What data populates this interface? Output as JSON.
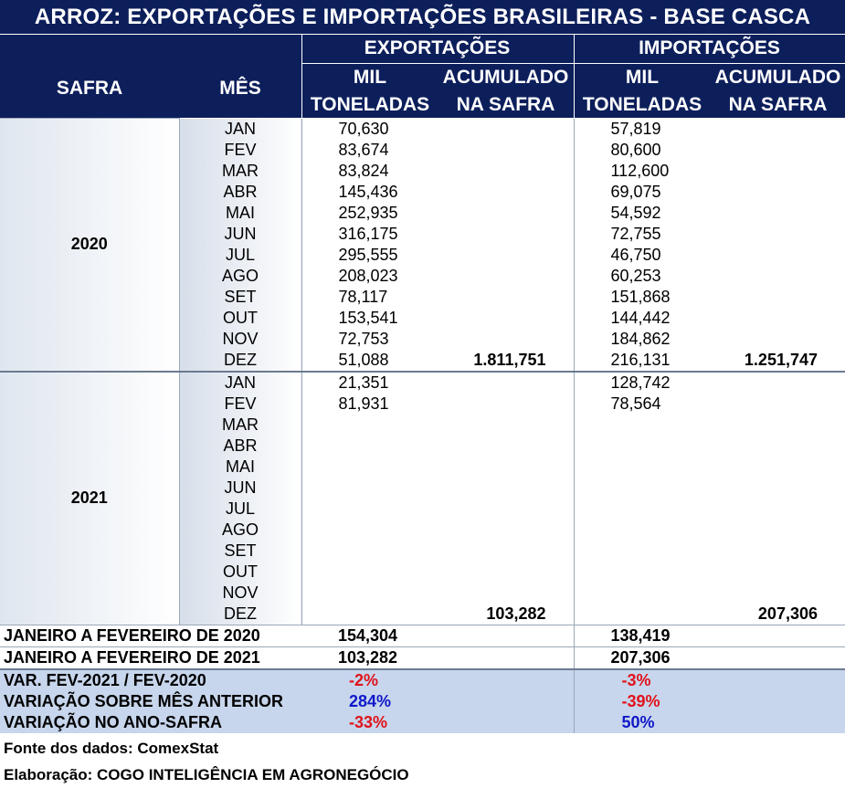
{
  "title": "ARROZ: EXPORTAÇÕES E IMPORTAÇÕES BRASILEIRAS - BASE CASCA",
  "header": {
    "safra": "SAFRA",
    "mes": "MÊS",
    "exportacoes": "EXPORTAÇÕES",
    "importacoes": "IMPORTAÇÕES",
    "mil_toneladas_1": "MIL",
    "mil_toneladas_2": "TONELADAS",
    "acumulado_1": "ACUMULADO",
    "acumulado_2": "NA SAFRA"
  },
  "safras": [
    {
      "year": "2020",
      "rows": [
        {
          "mes": "JAN",
          "exp": "70,630",
          "exp_acc": "",
          "imp": "57,819",
          "imp_acc": ""
        },
        {
          "mes": "FEV",
          "exp": "83,674",
          "exp_acc": "",
          "imp": "80,600",
          "imp_acc": ""
        },
        {
          "mes": "MAR",
          "exp": "83,824",
          "exp_acc": "",
          "imp": "112,600",
          "imp_acc": ""
        },
        {
          "mes": "ABR",
          "exp": "145,436",
          "exp_acc": "",
          "imp": "69,075",
          "imp_acc": ""
        },
        {
          "mes": "MAI",
          "exp": "252,935",
          "exp_acc": "",
          "imp": "54,592",
          "imp_acc": ""
        },
        {
          "mes": "JUN",
          "exp": "316,175",
          "exp_acc": "",
          "imp": "72,755",
          "imp_acc": ""
        },
        {
          "mes": "JUL",
          "exp": "295,555",
          "exp_acc": "",
          "imp": "46,750",
          "imp_acc": ""
        },
        {
          "mes": "AGO",
          "exp": "208,023",
          "exp_acc": "",
          "imp": "60,253",
          "imp_acc": ""
        },
        {
          "mes": "SET",
          "exp": "78,117",
          "exp_acc": "",
          "imp": "151,868",
          "imp_acc": ""
        },
        {
          "mes": "OUT",
          "exp": "153,541",
          "exp_acc": "",
          "imp": "144,442",
          "imp_acc": ""
        },
        {
          "mes": "NOV",
          "exp": "72,753",
          "exp_acc": "",
          "imp": "184,862",
          "imp_acc": ""
        },
        {
          "mes": "DEZ",
          "exp": "51,088",
          "exp_acc": "1.811,751",
          "imp": "216,131",
          "imp_acc": "1.251,747"
        }
      ]
    },
    {
      "year": "2021",
      "rows": [
        {
          "mes": "JAN",
          "exp": "21,351",
          "exp_acc": "",
          "imp": "128,742",
          "imp_acc": ""
        },
        {
          "mes": "FEV",
          "exp": "81,931",
          "exp_acc": "",
          "imp": "78,564",
          "imp_acc": ""
        },
        {
          "mes": "MAR",
          "exp": "",
          "exp_acc": "",
          "imp": "",
          "imp_acc": ""
        },
        {
          "mes": "ABR",
          "exp": "",
          "exp_acc": "",
          "imp": "",
          "imp_acc": ""
        },
        {
          "mes": "MAI",
          "exp": "",
          "exp_acc": "",
          "imp": "",
          "imp_acc": ""
        },
        {
          "mes": "JUN",
          "exp": "",
          "exp_acc": "",
          "imp": "",
          "imp_acc": ""
        },
        {
          "mes": "JUL",
          "exp": "",
          "exp_acc": "",
          "imp": "",
          "imp_acc": ""
        },
        {
          "mes": "AGO",
          "exp": "",
          "exp_acc": "",
          "imp": "",
          "imp_acc": ""
        },
        {
          "mes": "SET",
          "exp": "",
          "exp_acc": "",
          "imp": "",
          "imp_acc": ""
        },
        {
          "mes": "OUT",
          "exp": "",
          "exp_acc": "",
          "imp": "",
          "imp_acc": ""
        },
        {
          "mes": "NOV",
          "exp": "",
          "exp_acc": "",
          "imp": "",
          "imp_acc": ""
        },
        {
          "mes": "DEZ",
          "exp": "",
          "exp_acc": "103,282",
          "imp": "",
          "imp_acc": "207,306"
        }
      ]
    }
  ],
  "summary": [
    {
      "label": "JANEIRO A FEVEREIRO DE 2020",
      "exp": "154,304",
      "imp": "138,419"
    },
    {
      "label": "JANEIRO A FEVEREIRO DE 2021",
      "exp": "103,282",
      "imp": "207,306"
    }
  ],
  "variations": [
    {
      "label": "VAR. FEV-2021 / FEV-2020",
      "exp": "-2%",
      "exp_color": "#e0121b",
      "imp": "-3%",
      "imp_color": "#e0121b"
    },
    {
      "label": "VARIAÇÃO SOBRE MÊS ANTERIOR",
      "exp": "284%",
      "exp_color": "#1018c8",
      "imp": "-39%",
      "imp_color": "#e0121b"
    },
    {
      "label": "VARIAÇÃO NO ANO-SAFRA",
      "exp": "-33%",
      "exp_color": "#e0121b",
      "imp": "50%",
      "imp_color": "#1018c8"
    }
  ],
  "footer": {
    "fonte": "Fonte dos dados: ComexStat",
    "elaboracao": "Elaboração: COGO INTELIGÊNCIA EM AGRONEGÓCIO"
  }
}
